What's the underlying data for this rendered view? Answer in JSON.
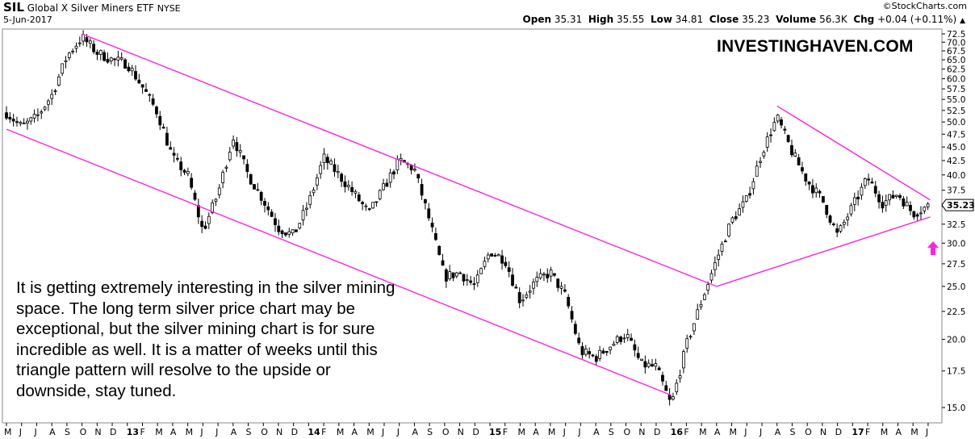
{
  "header": {
    "symbol": "SIL",
    "name": "Global X Silver Miners ETF",
    "exchange": "NYSE",
    "date": "5-Jun-2017",
    "copyright": "©StockCharts.com",
    "open_label": "Open",
    "open": "35.31",
    "high_label": "High",
    "high": "35.55",
    "low_label": "Low",
    "low": "34.81",
    "close_label": "Close",
    "close": "35.23",
    "volume_label": "Volume",
    "volume": "56.3K",
    "chg_label": "Chg",
    "chg": "+0.04 (+0.11%)",
    "chg_icon": "triangle-up-icon"
  },
  "watermark": "INVESTINGHAVEN.COM",
  "note": "It is getting extremely interesting in the silver mining space. The long term silver price chart may be exceptional, but the silver mining chart is for sure incredible as well. It is a matter of weeks until this triangle pattern will resolve to the upside or downside, stay tuned.",
  "annotation": {
    "icon": "arrow-up-icon",
    "color": "#ff22dd"
  },
  "chart_data": {
    "type": "ohlc",
    "scale": "log",
    "ylim": [
      14.0,
      73.5
    ],
    "y_ticks": [
      72.5,
      70.0,
      67.5,
      65.0,
      62.5,
      60.0,
      57.5,
      55.0,
      52.5,
      50.0,
      47.5,
      45.0,
      42.5,
      40.0,
      37.5,
      35.0,
      32.5,
      30.0,
      27.5,
      25.0,
      22.5,
      20.0,
      17.5,
      15.0
    ],
    "y_tick_labels": [
      "72.5",
      "70.0",
      "67.5",
      "65.0",
      "62.5",
      "60.0",
      "57.5",
      "55.0",
      "52.5",
      "50.0",
      "47.5",
      "45.0",
      "42.5",
      "40.0",
      "37.5",
      "35.0",
      "32.5",
      "30.0",
      "27.5",
      "25.0",
      "22.5",
      "20.0",
      "17.5",
      "15.0"
    ],
    "last_price_label": "35.23",
    "last_price": 35.23,
    "x_labels": [
      "M",
      "J",
      "J",
      "A",
      "S",
      "O",
      "N",
      "D",
      "13",
      "F",
      "M",
      "A",
      "M",
      "J",
      "J",
      "A",
      "S",
      "O",
      "N",
      "D",
      "14",
      "F",
      "M",
      "A",
      "M",
      "J",
      "J",
      "A",
      "S",
      "O",
      "N",
      "D",
      "15",
      "F",
      "M",
      "A",
      "M",
      "J",
      "J",
      "A",
      "S",
      "O",
      "N",
      "D",
      "16",
      "F",
      "M",
      "A",
      "M",
      "J",
      "J",
      "A",
      "S",
      "O",
      "N",
      "D",
      "17",
      "F",
      "M",
      "A",
      "M",
      "J"
    ],
    "x_label_bold": [
      "13",
      "14",
      "15",
      "16",
      "17"
    ],
    "path_points": [
      [
        "2012-05",
        52
      ],
      [
        "2012-06",
        49
      ],
      [
        "2012-07",
        51
      ],
      [
        "2012-08",
        56
      ],
      [
        "2012-09",
        66
      ],
      [
        "2012-10",
        71.5
      ],
      [
        "2012-11",
        67
      ],
      [
        "2012-12",
        65
      ],
      [
        "2013-01",
        64
      ],
      [
        "2013-02",
        58
      ],
      [
        "2013-03",
        52
      ],
      [
        "2013-04",
        43
      ],
      [
        "2013-05",
        40
      ],
      [
        "2013-06",
        31.5
      ],
      [
        "2013-07",
        37
      ],
      [
        "2013-08",
        47
      ],
      [
        "2013-09",
        40
      ],
      [
        "2013-10",
        36
      ],
      [
        "2013-11",
        32
      ],
      [
        "2013-12",
        31
      ],
      [
        "2014-01",
        35.5
      ],
      [
        "2014-02",
        43
      ],
      [
        "2014-03",
        40
      ],
      [
        "2014-04",
        37
      ],
      [
        "2014-05",
        34
      ],
      [
        "2014-06",
        38
      ],
      [
        "2014-07",
        42.5
      ],
      [
        "2014-08",
        41
      ],
      [
        "2014-09",
        33
      ],
      [
        "2014-10",
        26
      ],
      [
        "2014-11",
        26.5
      ],
      [
        "2014-12",
        25
      ],
      [
        "2015-01",
        29
      ],
      [
        "2015-02",
        28
      ],
      [
        "2015-03",
        23.5
      ],
      [
        "2015-04",
        25.5
      ],
      [
        "2015-05",
        26.5
      ],
      [
        "2015-06",
        24
      ],
      [
        "2015-07",
        19
      ],
      [
        "2015-08",
        18.5
      ],
      [
        "2015-09",
        19.5
      ],
      [
        "2015-10",
        20.5
      ],
      [
        "2015-11",
        18
      ],
      [
        "2015-12",
        17.8
      ],
      [
        "2016-01",
        15.1
      ],
      [
        "2016-02",
        19.5
      ],
      [
        "2016-03",
        23.5
      ],
      [
        "2016-04",
        28
      ],
      [
        "2016-05",
        33
      ],
      [
        "2016-06",
        36
      ],
      [
        "2016-07",
        44
      ],
      [
        "2016-08",
        51
      ],
      [
        "2016-09",
        44
      ],
      [
        "2016-10",
        39
      ],
      [
        "2016-11",
        36
      ],
      [
        "2016-12",
        31
      ],
      [
        "2017-01",
        35
      ],
      [
        "2017-02",
        39.5
      ],
      [
        "2017-03",
        35.5
      ],
      [
        "2017-04",
        37
      ],
      [
        "2017-05",
        34
      ],
      [
        "2017-06-05",
        35.23
      ]
    ],
    "trendlines": [
      {
        "name": "upper-channel",
        "from": [
          "2012-10",
          72.5
        ],
        "to": [
          "2016-04",
          25.0
        ],
        "color": "#ff22dd"
      },
      {
        "name": "lower-channel",
        "from": [
          "2012-05",
          48.5
        ],
        "to": [
          "2016-01",
          15.8
        ],
        "color": "#ff22dd"
      },
      {
        "name": "triangle-upper",
        "from": [
          "2016-08",
          53.5
        ],
        "to": [
          "2017-06-05",
          36.0
        ],
        "color": "#ff22dd"
      },
      {
        "name": "triangle-lower",
        "from": [
          "2016-04",
          25.0
        ],
        "to": [
          "2017-06-05",
          33.5
        ],
        "color": "#ff22dd"
      }
    ],
    "grid": false,
    "legend": "none"
  }
}
